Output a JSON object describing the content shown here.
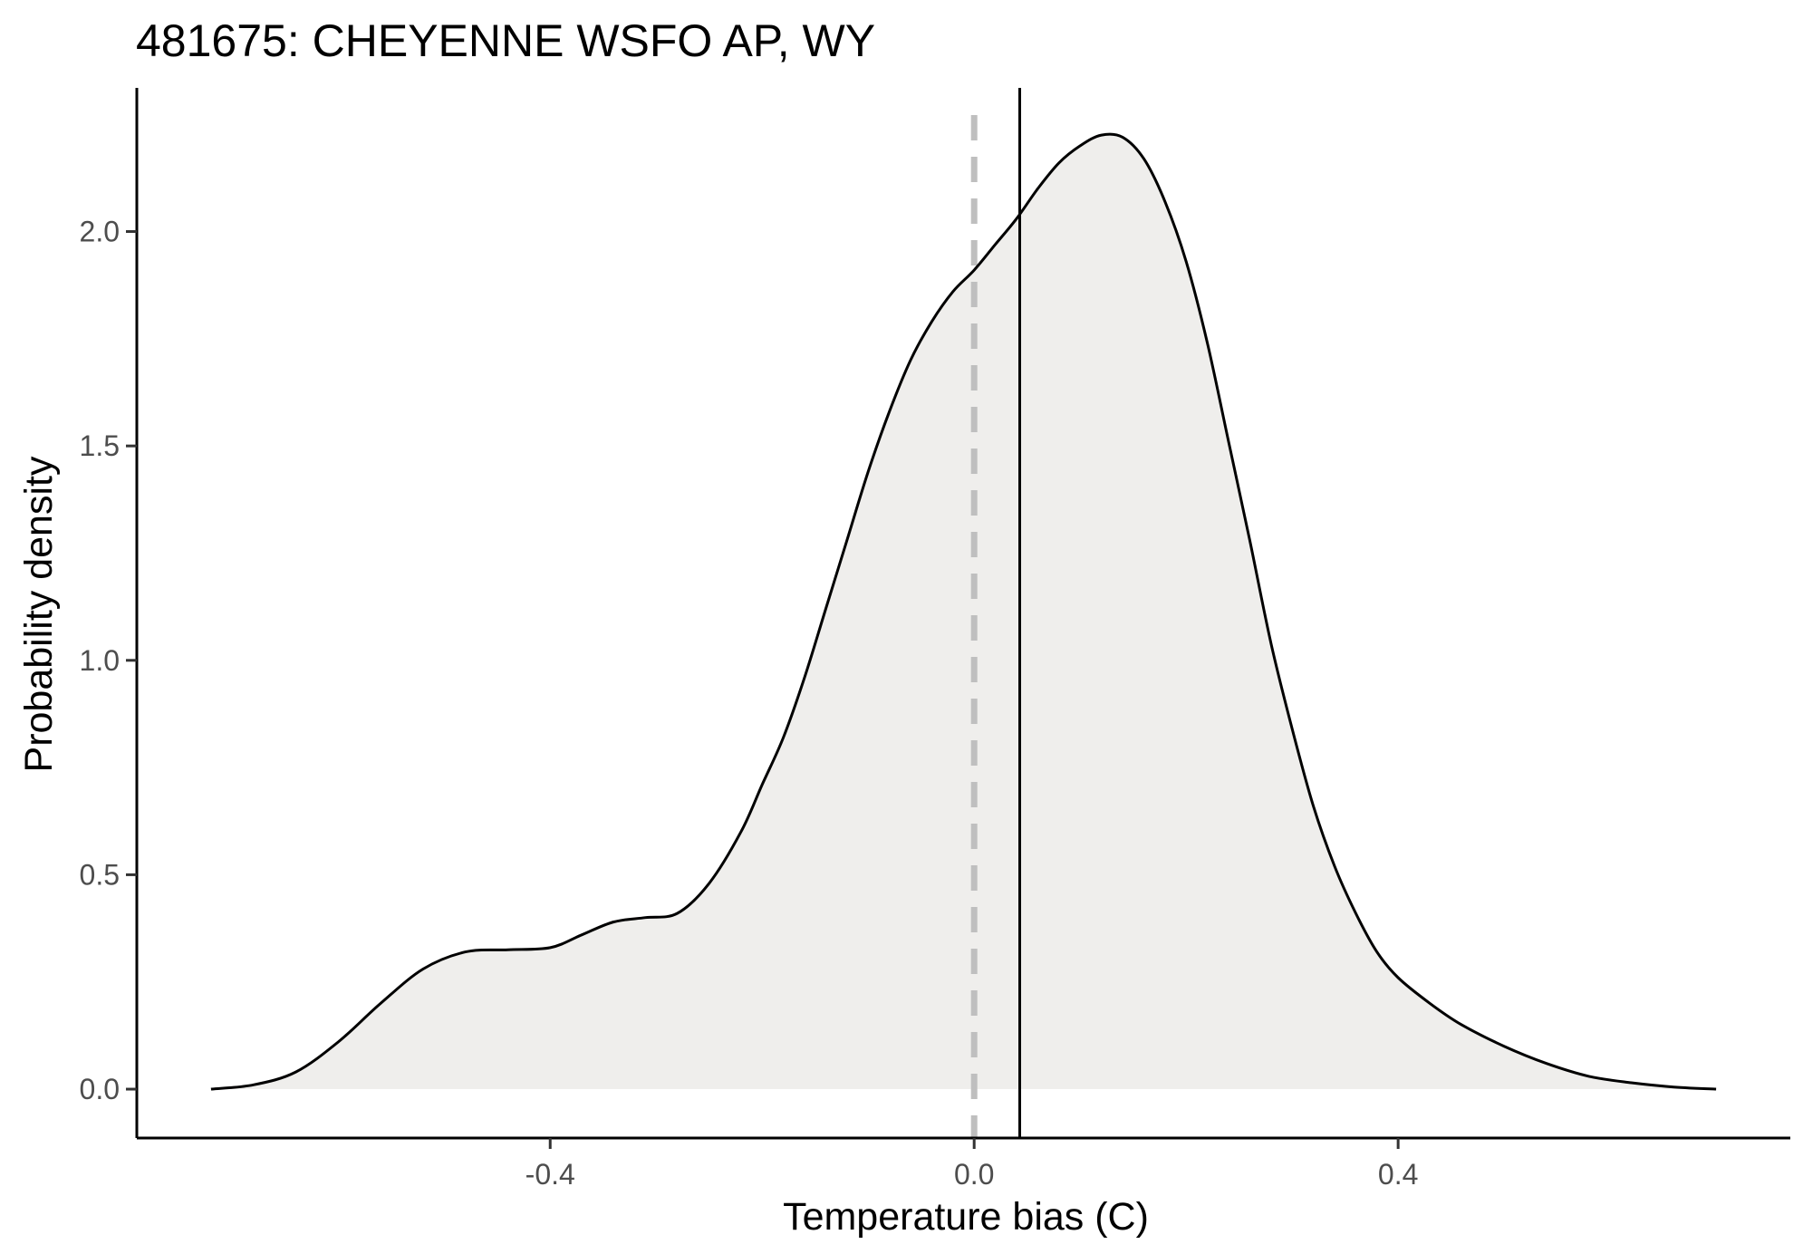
{
  "chart_data": {
    "type": "area",
    "title": "481675: CHEYENNE WSFO AP, WY",
    "xlabel": "Temperature bias (C)",
    "ylabel": "Probability density",
    "xlim": [
      -0.79,
      0.77
    ],
    "ylim": [
      -0.114,
      2.335
    ],
    "x_ticks": [
      -0.4,
      0.0,
      0.4
    ],
    "x_tick_labels": [
      "-0.4",
      "0.0",
      "0.4"
    ],
    "y_ticks": [
      0.0,
      0.5,
      1.0,
      1.5,
      2.0
    ],
    "y_tick_labels": [
      "0.0",
      "0.5",
      "1.0",
      "1.5",
      "2.0"
    ],
    "grid": false,
    "legend": "none",
    "fill_color": "#efeeec",
    "line_color": "#000000",
    "reference_lines": [
      {
        "orientation": "vertical",
        "x": 0.0,
        "style": "dashed",
        "color": "#bfbfbf"
      },
      {
        "orientation": "vertical",
        "x": 0.043,
        "style": "solid",
        "color": "#000000"
      }
    ],
    "series": [
      {
        "x": [
          -0.72,
          -0.68,
          -0.64,
          -0.6,
          -0.56,
          -0.52,
          -0.48,
          -0.44,
          -0.4,
          -0.37,
          -0.34,
          -0.31,
          -0.28,
          -0.25,
          -0.22,
          -0.2,
          -0.18,
          -0.16,
          -0.14,
          -0.12,
          -0.1,
          -0.08,
          -0.06,
          -0.04,
          -0.02,
          0.0,
          0.02,
          0.04,
          0.06,
          0.08,
          0.1,
          0.12,
          0.14,
          0.16,
          0.18,
          0.2,
          0.22,
          0.24,
          0.26,
          0.28,
          0.3,
          0.32,
          0.34,
          0.36,
          0.38,
          0.4,
          0.43,
          0.46,
          0.5,
          0.54,
          0.58,
          0.62,
          0.66,
          0.7
        ],
        "y": [
          0.0,
          0.01,
          0.04,
          0.11,
          0.2,
          0.28,
          0.32,
          0.325,
          0.33,
          0.36,
          0.39,
          0.4,
          0.41,
          0.48,
          0.6,
          0.71,
          0.82,
          0.96,
          1.12,
          1.28,
          1.44,
          1.58,
          1.7,
          1.79,
          1.86,
          1.91,
          1.97,
          2.03,
          2.1,
          2.16,
          2.2,
          2.225,
          2.22,
          2.17,
          2.07,
          1.93,
          1.74,
          1.51,
          1.28,
          1.04,
          0.84,
          0.66,
          0.52,
          0.41,
          0.32,
          0.26,
          0.2,
          0.15,
          0.1,
          0.06,
          0.03,
          0.015,
          0.005,
          0.0
        ]
      }
    ]
  }
}
